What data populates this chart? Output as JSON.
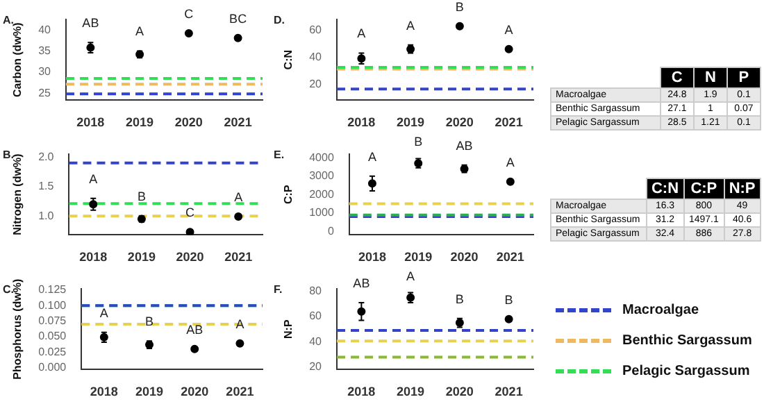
{
  "chart_data": [
    {
      "type": "scatter",
      "title": "A.",
      "ylabel": "Carbon (dw%)",
      "categories": [
        "2018",
        "2019",
        "2020",
        "2021"
      ],
      "marker": "circle",
      "ylim": [
        23.3,
        42.5
      ],
      "yticks": [
        25,
        30,
        35,
        40
      ],
      "series": [
        {
          "color": "#000000",
          "values": [
            35.8,
            34.2,
            39.2,
            38.1
          ],
          "errors": [
            1.2,
            0.8,
            null,
            null
          ]
        }
      ],
      "ref_lines": [
        {
          "axis": "y",
          "value": 24.8,
          "color": "#3344cc",
          "line_style": "dashed"
        },
        {
          "axis": "y",
          "value": 27.1,
          "color": "#f0b860",
          "line_style": "dashed"
        },
        {
          "axis": "y",
          "value": 28.5,
          "color": "#33dd55",
          "line_style": "dashed"
        }
      ],
      "annotations": [
        "AB",
        "A",
        "C",
        "BC"
      ]
    },
    {
      "type": "scatter",
      "title": "B.",
      "ylabel": "Nitrogen (dw%)",
      "categories": [
        "2018",
        "2019",
        "2020",
        "2021"
      ],
      "marker": "circle",
      "ylim": [
        0.68,
        2.05
      ],
      "yticks": [
        {
          "value": 1,
          "label": "1.0"
        },
        1.5,
        {
          "value": 2,
          "label": "2.0"
        }
      ],
      "series": [
        {
          "color": "#000000",
          "values": [
            1.2,
            0.95,
            0.73,
            0.99
          ],
          "errors": [
            0.1,
            0.05,
            null,
            null
          ]
        }
      ],
      "ref_lines": [
        {
          "axis": "y",
          "value": 1.9,
          "color": "#3344cc",
          "line_style": "dashed"
        },
        {
          "axis": "y",
          "value": 1,
          "color": "#e8d050",
          "line_style": "dashed"
        },
        {
          "axis": "y",
          "value": 1.21,
          "color": "#33dd55",
          "line_style": "dashed"
        }
      ],
      "annotations": [
        "A",
        "B",
        "C",
        "A"
      ]
    },
    {
      "type": "scatter",
      "title": "C.",
      "ylabel": "Phosphorus (dw%)",
      "categories": [
        "2018",
        "2019",
        "2020",
        "2021"
      ],
      "marker": "circle",
      "ylim": [
        -0.003,
        0.127
      ],
      "yticks": [
        {
          "value": 0,
          "label": "0.000"
        },
        {
          "value": 0.025,
          "label": "0.025"
        },
        {
          "value": 0.05,
          "label": "0.050"
        },
        {
          "value": 0.075,
          "label": "0.075"
        },
        {
          "value": 0.1,
          "label": "0.100"
        },
        {
          "value": 0.125,
          "label": "0.125"
        }
      ],
      "series": [
        {
          "color": "#000000",
          "values": [
            0.049,
            0.037,
            0.03,
            0.039
          ],
          "errors": [
            0.008,
            0.006,
            null,
            null
          ]
        }
      ],
      "ref_lines": [
        {
          "axis": "y",
          "value": 0.1,
          "color": "#33dd55",
          "line_style": "dashed"
        },
        {
          "axis": "y",
          "value": 0.1,
          "color": "#3344cc",
          "line_style": "dashed"
        },
        {
          "axis": "y",
          "value": 0.07,
          "color": "#e8d050",
          "line_style": "dashed"
        }
      ],
      "annotations": [
        "A",
        "B",
        "AB",
        "A"
      ]
    },
    {
      "type": "scatter",
      "title": "D.",
      "ylabel": "C:N",
      "categories": [
        "2018",
        "2019",
        "2020",
        "2021"
      ],
      "marker": "circle",
      "ylim": [
        8,
        68
      ],
      "yticks": [
        20,
        40,
        60
      ],
      "series": [
        {
          "color": "#000000",
          "values": [
            39,
            46,
            63,
            46
          ],
          "errors": [
            4,
            3,
            null,
            null
          ]
        }
      ],
      "ref_lines": [
        {
          "axis": "y",
          "value": 16.3,
          "color": "#3344cc",
          "line_style": "dashed"
        },
        {
          "axis": "y",
          "value": 31.2,
          "color": "#f0b860",
          "line_style": "dashed"
        },
        {
          "axis": "y",
          "value": 32.4,
          "color": "#33dd55",
          "line_style": "dashed"
        }
      ],
      "annotations": [
        "A",
        "A",
        "B",
        "A"
      ]
    },
    {
      "type": "scatter",
      "title": "E.",
      "ylabel": "C:P",
      "categories": [
        "2018",
        "2019",
        "2020",
        "2021"
      ],
      "marker": "circle",
      "ylim": [
        -200,
        4200
      ],
      "yticks": [
        0,
        1000,
        2000,
        3000,
        4000
      ],
      "series": [
        {
          "color": "#000000",
          "values": [
            2600,
            3700,
            3400,
            2700
          ],
          "errors": [
            400,
            250,
            200,
            null
          ]
        }
      ],
      "ref_lines": [
        {
          "axis": "y",
          "value": 800,
          "color": "#3344cc",
          "line_style": "dashed"
        },
        {
          "axis": "y",
          "value": 1497,
          "color": "#e8d050",
          "line_style": "dashed"
        },
        {
          "axis": "y",
          "value": 886,
          "color": "#33aa55",
          "line_style": "dashed"
        }
      ],
      "annotations": [
        "A",
        "B",
        "AB",
        "A"
      ]
    },
    {
      "type": "scatter",
      "title": "F.",
      "ylabel": "N:P",
      "categories": [
        "2018",
        "2019",
        "2020",
        "2021"
      ],
      "marker": "circle",
      "ylim": [
        18,
        82
      ],
      "yticks": [
        20,
        40,
        60,
        80
      ],
      "series": [
        {
          "color": "#000000",
          "values": [
            64,
            75,
            55,
            58
          ],
          "errors": [
            7,
            4,
            3.5,
            null
          ]
        }
      ],
      "ref_lines": [
        {
          "axis": "y",
          "value": 49,
          "color": "#3344cc",
          "line_style": "dashed"
        },
        {
          "axis": "y",
          "value": 40.6,
          "color": "#e8d050",
          "line_style": "dashed"
        },
        {
          "axis": "y",
          "value": 27.8,
          "color": "#88bb33",
          "line_style": "dashed"
        }
      ],
      "annotations": [
        "AB",
        "A",
        "B",
        "B"
      ]
    },
    {
      "type": "other",
      "categories": [
        null,
        "C",
        "N",
        "P"
      ],
      "y_categories": [
        "Macroalgae",
        "Benthic Sargassum",
        "Pelagic Sargassum"
      ],
      "cell_labels": [
        [
          "24.8",
          "1.9",
          "0.1"
        ],
        [
          "27.1",
          "1",
          "0.07"
        ],
        [
          "28.5",
          "1.21",
          "0.1"
        ]
      ]
    },
    {
      "type": "other",
      "categories": [
        null,
        "C:N",
        "C:P",
        "N:P"
      ],
      "y_categories": [
        "Macroalgae",
        "Benthic Sargassum",
        "Pelagic Sargassum"
      ],
      "cell_labels": [
        [
          "16.3",
          "800",
          "49"
        ],
        [
          "31.2",
          "1497.1",
          "40.6"
        ],
        [
          "32.4",
          "886",
          "27.8"
        ]
      ]
    },
    {
      "type": "other",
      "series": [
        {
          "name": "Macroalgae",
          "color": "#3344cc"
        },
        {
          "name": "Benthic Sargassum",
          "color": "#f0b860"
        },
        {
          "name": "Pelagic Sargassum",
          "color": "#33dd55"
        }
      ]
    }
  ]
}
